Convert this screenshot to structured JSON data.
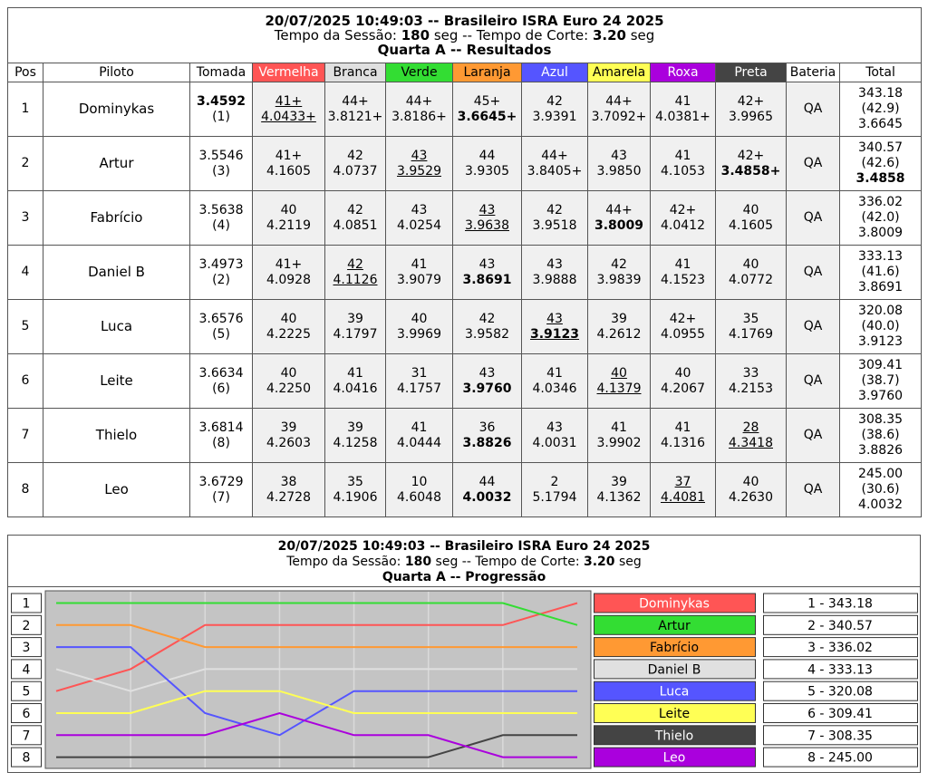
{
  "results": {
    "title": "20/07/2025 10:49:03 -- Brasileiro ISRA Euro 24 2025",
    "subtitle": [
      "Tempo da Sessão: ",
      "180",
      " seg -- Tempo de Corte: ",
      "3.20",
      " seg"
    ],
    "heading": "Quarta A -- Resultados",
    "columns": [
      "Pos",
      "Piloto",
      "Tomada",
      "Vermelha",
      "Branca",
      "Verde",
      "Laranja",
      "Azul",
      "Amarela",
      "Roxa",
      "Preta",
      "Bateria",
      "Total"
    ],
    "rows": [
      {
        "pos": "1",
        "name": "Dominykas",
        "tomada": "3.4592",
        "tomada_pos": "(1)",
        "laps": [
          [
            "41+",
            "4.0433+"
          ],
          [
            "44+",
            "3.8121+"
          ],
          [
            "44+",
            "3.8186+"
          ],
          [
            "45+",
            "3.6645+"
          ],
          [
            "42",
            "3.9391"
          ],
          [
            "44+",
            "3.7092+"
          ],
          [
            "41",
            "4.0381+"
          ],
          [
            "42+",
            "3.9965"
          ]
        ],
        "bateria": "QA",
        "total": [
          "343.18",
          "(42.9)",
          "3.6645"
        ]
      },
      {
        "pos": "2",
        "name": "Artur",
        "tomada": "3.5546",
        "tomada_pos": "(3)",
        "laps": [
          [
            "41+",
            "4.1605"
          ],
          [
            "42",
            "4.0737"
          ],
          [
            "43",
            "3.9529"
          ],
          [
            "44",
            "3.9305"
          ],
          [
            "44+",
            "3.8405+"
          ],
          [
            "43",
            "3.9850"
          ],
          [
            "41",
            "4.1053"
          ],
          [
            "42+",
            "3.4858+"
          ]
        ],
        "bateria": "QA",
        "total": [
          "340.57",
          "(42.6)",
          "3.4858"
        ]
      },
      {
        "pos": "3",
        "name": "Fabrício",
        "tomada": "3.5638",
        "tomada_pos": "(4)",
        "laps": [
          [
            "40",
            "4.2119"
          ],
          [
            "42",
            "4.0851"
          ],
          [
            "43",
            "4.0254"
          ],
          [
            "43",
            "3.9638"
          ],
          [
            "42",
            "3.9518"
          ],
          [
            "44+",
            "3.8009"
          ],
          [
            "42+",
            "4.0412"
          ],
          [
            "40",
            "4.1605"
          ]
        ],
        "bateria": "QA",
        "total": [
          "336.02",
          "(42.0)",
          "3.8009"
        ]
      },
      {
        "pos": "4",
        "name": "Daniel B",
        "tomada": "3.4973",
        "tomada_pos": "(2)",
        "laps": [
          [
            "41+",
            "4.0928"
          ],
          [
            "42",
            "4.1126"
          ],
          [
            "41",
            "3.9079"
          ],
          [
            "43",
            "3.8691"
          ],
          [
            "43",
            "3.9888"
          ],
          [
            "42",
            "3.9839"
          ],
          [
            "41",
            "4.1523"
          ],
          [
            "40",
            "4.0772"
          ]
        ],
        "bateria": "QA",
        "total": [
          "333.13",
          "(41.6)",
          "3.8691"
        ]
      },
      {
        "pos": "5",
        "name": "Luca",
        "tomada": "3.6576",
        "tomada_pos": "(5)",
        "laps": [
          [
            "40",
            "4.2225"
          ],
          [
            "39",
            "4.1797"
          ],
          [
            "40",
            "3.9969"
          ],
          [
            "42",
            "3.9582"
          ],
          [
            "43",
            "3.9123"
          ],
          [
            "39",
            "4.2612"
          ],
          [
            "42+",
            "4.0955"
          ],
          [
            "35",
            "4.1769"
          ]
        ],
        "bateria": "QA",
        "total": [
          "320.08",
          "(40.0)",
          "3.9123"
        ]
      },
      {
        "pos": "6",
        "name": "Leite",
        "tomada": "3.6634",
        "tomada_pos": "(6)",
        "laps": [
          [
            "40",
            "4.2250"
          ],
          [
            "41",
            "4.0416"
          ],
          [
            "31",
            "4.1757"
          ],
          [
            "43",
            "3.9760"
          ],
          [
            "41",
            "4.0346"
          ],
          [
            "40",
            "4.1379"
          ],
          [
            "40",
            "4.2067"
          ],
          [
            "33",
            "4.2153"
          ]
        ],
        "bateria": "QA",
        "total": [
          "309.41",
          "(38.7)",
          "3.9760"
        ]
      },
      {
        "pos": "7",
        "name": "Thielo",
        "tomada": "3.6814",
        "tomada_pos": "(8)",
        "laps": [
          [
            "39",
            "4.2603"
          ],
          [
            "39",
            "4.1258"
          ],
          [
            "41",
            "4.0444"
          ],
          [
            "36",
            "3.8826"
          ],
          [
            "43",
            "4.0031"
          ],
          [
            "41",
            "3.9902"
          ],
          [
            "41",
            "4.1316"
          ],
          [
            "28",
            "4.3418"
          ]
        ],
        "bateria": "QA",
        "total": [
          "308.35",
          "(38.6)",
          "3.8826"
        ]
      },
      {
        "pos": "8",
        "name": "Leo",
        "tomada": "3.6729",
        "tomada_pos": "(7)",
        "laps": [
          [
            "38",
            "4.2728"
          ],
          [
            "35",
            "4.1906"
          ],
          [
            "10",
            "4.6048"
          ],
          [
            "44",
            "4.0032"
          ],
          [
            "2",
            "5.1794"
          ],
          [
            "39",
            "4.1362"
          ],
          [
            "37",
            "4.4081"
          ],
          [
            "40",
            "4.2630"
          ]
        ],
        "bateria": "QA",
        "total": [
          "245.00",
          "(30.6)",
          "4.0032"
        ]
      }
    ]
  },
  "chart_data": {
    "type": "line",
    "title": "20/07/2025 10:49:03 -- Brasileiro ISRA Euro 24 2025",
    "subtitle": [
      "Tempo da Sessão: ",
      "180",
      " seg -- Tempo de Corte: ",
      "3.20",
      " seg"
    ],
    "heading": "Quarta A -- Progressão",
    "ylim": [
      1,
      8
    ],
    "yticks": [
      1,
      2,
      3,
      4,
      5,
      6,
      7,
      8
    ],
    "series": [
      {
        "name": "Dominykas",
        "color": "#ff5555",
        "values": [
          5,
          4,
          2,
          2,
          2,
          2,
          2,
          1
        ]
      },
      {
        "name": "Artur",
        "color": "#33dd33",
        "values": [
          1,
          1,
          1,
          1,
          1,
          1,
          1,
          2
        ]
      },
      {
        "name": "Fabrício",
        "color": "#ff9933",
        "values": [
          2,
          2,
          3,
          3,
          3,
          3,
          3,
          3
        ]
      },
      {
        "name": "Daniel B",
        "color": "#e0e0e0",
        "values": [
          4,
          5,
          4,
          4,
          4,
          4,
          4,
          4
        ]
      },
      {
        "name": "Luca",
        "color": "#5555ff",
        "values": [
          3,
          3,
          6,
          7,
          5,
          5,
          5,
          5
        ]
      },
      {
        "name": "Leite",
        "color": "#ffff55",
        "values": [
          6,
          6,
          5,
          5,
          6,
          6,
          6,
          6
        ]
      },
      {
        "name": "Thielo",
        "color": "#444444",
        "values": [
          8,
          8,
          8,
          8,
          8,
          8,
          7,
          7
        ]
      },
      {
        "name": "Leo",
        "color": "#aa00dd",
        "values": [
          7,
          7,
          7,
          6,
          7,
          7,
          8,
          8
        ]
      }
    ],
    "standings": [
      "1 - 343.18",
      "2 - 340.57",
      "3 - 336.02",
      "4 - 333.13",
      "5 - 320.08",
      "6 - 309.41",
      "7 - 308.35",
      "8 - 245.00"
    ]
  }
}
